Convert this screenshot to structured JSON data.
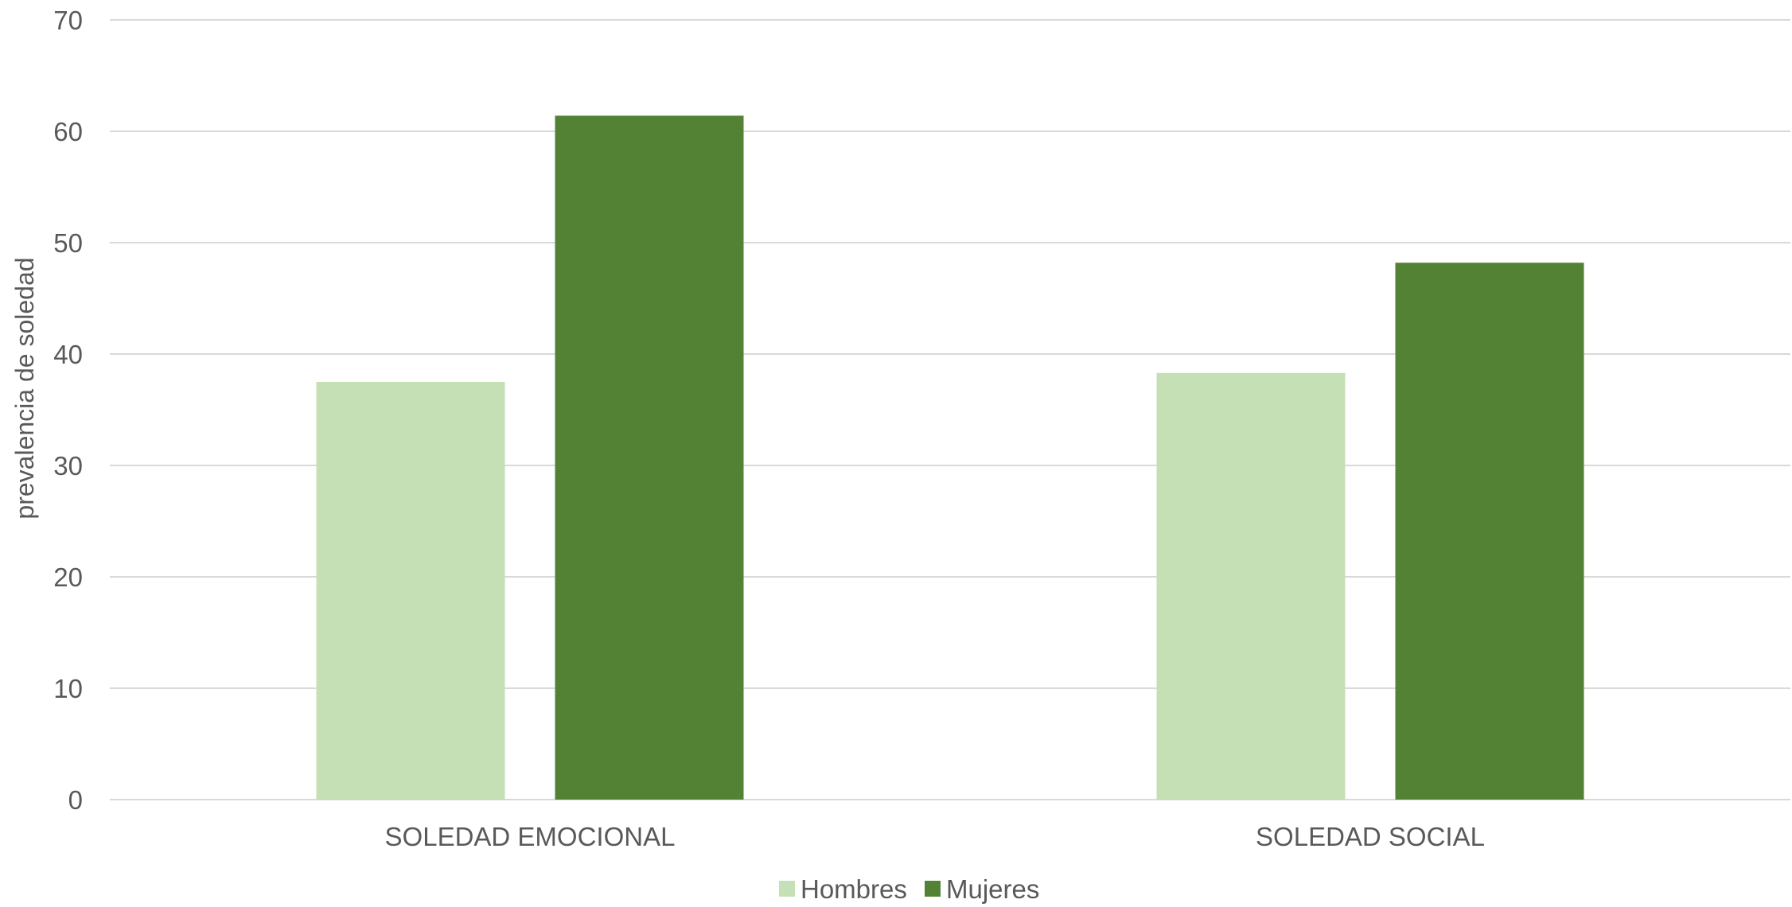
{
  "chart_data": {
    "type": "bar",
    "title": "",
    "xlabel": "",
    "ylabel": "prevalencia de soledad",
    "categories": [
      "SOLEDAD EMOCIONAL",
      "SOLEDAD SOCIAL"
    ],
    "series": [
      {
        "name": "Hombres",
        "color": "#c5e0b4",
        "values": [
          37.5,
          38.3
        ]
      },
      {
        "name": "Mujeres",
        "color": "#548235",
        "values": [
          61.4,
          48.2
        ]
      }
    ],
    "ylim": [
      0,
      70
    ],
    "yticks": [
      "0",
      "10",
      "20",
      "30",
      "40",
      "50",
      "60",
      "70"
    ],
    "grid": true,
    "gridColor": "#d9d9d9",
    "legendPosition": "bottom"
  }
}
